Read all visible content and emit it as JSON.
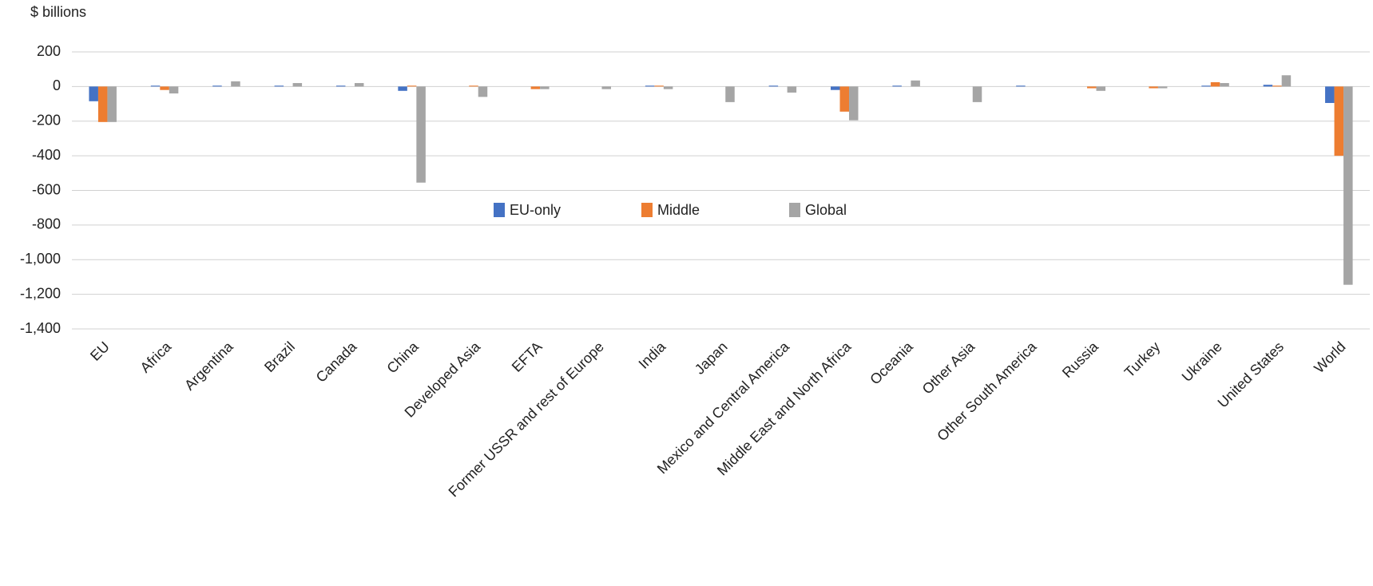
{
  "chart_data": {
    "type": "bar",
    "y_label": "$ billions",
    "categories": [
      "EU",
      "Africa",
      "Argentina",
      "Brazil",
      "Canada",
      "China",
      "Developed Asia",
      "EFTA",
      "Former USSR and rest of Europe",
      "India",
      "Japan",
      "Mexico and Central America",
      "Middle East and North Africa",
      "Oceania",
      "Other Asia",
      "Other South America",
      "Russia",
      "Turkey",
      "Ukraine",
      "United States",
      "World"
    ],
    "series": [
      {
        "name": "EU-only",
        "color": "#4472c4",
        "values": [
          -85,
          5,
          5,
          5,
          5,
          -25,
          0,
          0,
          0,
          5,
          0,
          5,
          -20,
          5,
          0,
          5,
          0,
          0,
          5,
          10,
          -95
        ]
      },
      {
        "name": "Middle",
        "color": "#ed7d31",
        "values": [
          -205,
          -20,
          0,
          0,
          0,
          5,
          5,
          -15,
          0,
          5,
          0,
          0,
          -145,
          0,
          0,
          0,
          -10,
          -10,
          25,
          5,
          -400
        ]
      },
      {
        "name": "Global",
        "color": "#a5a5a5",
        "values": [
          -205,
          -40,
          30,
          20,
          20,
          -555,
          -60,
          -15,
          -15,
          -15,
          -90,
          -35,
          -195,
          35,
          -90,
          0,
          -25,
          -10,
          20,
          65,
          -1145
        ]
      }
    ],
    "ylim": [
      -1400,
      200
    ],
    "yticks": [
      {
        "value": -1400,
        "label": "-1,400"
      },
      {
        "value": -1200,
        "label": "-1,200"
      },
      {
        "value": -1000,
        "label": "-1,000"
      },
      -800,
      -600,
      -400,
      -200,
      0,
      200
    ],
    "grid": true,
    "legend": "center"
  }
}
